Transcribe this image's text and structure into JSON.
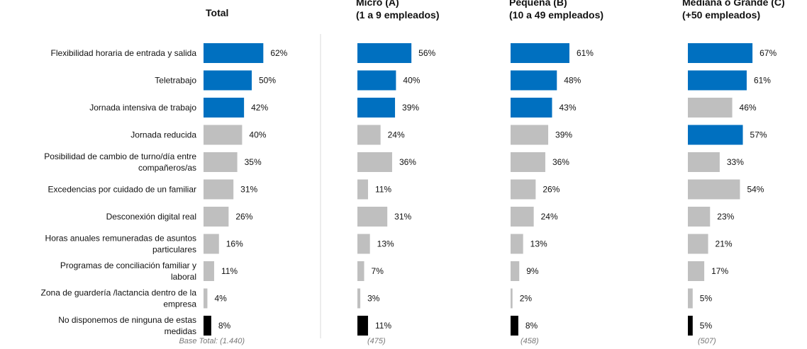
{
  "chart_data": {
    "type": "bar",
    "orientation": "horizontal",
    "unit": "%",
    "xlim": [
      0,
      100
    ],
    "grid": false,
    "legend": "none",
    "colors": {
      "highlight": "#0070C0",
      "default": "#BFBFBF",
      "none_option": "#000000"
    },
    "categories": [
      "Flexibilidad horaria de entrada y salida",
      "Teletrabajo",
      "Jornada intensiva de trabajo",
      "Jornada reducida",
      "Posibilidad de cambio de turno/día entre compañeros/as",
      "Excedencias por cuidado de un familiar",
      "Desconexión digital real",
      "Horas anuales remuneradas de asuntos particulares",
      "Programas de conciliación familiar y laboral",
      "Zona de guardería /lactancia dentro de la empresa",
      "No disponemos de ninguna de estas medidas"
    ],
    "category_lines": [
      [
        "Flexibilidad horaria de entrada y salida"
      ],
      [
        "Teletrabajo"
      ],
      [
        "Jornada intensiva de trabajo"
      ],
      [
        "Jornada reducida"
      ],
      [
        "Posibilidad de cambio de turno/día entre",
        "compañeros/as"
      ],
      [
        "Excedencias por cuidado de un familiar"
      ],
      [
        "Desconexión digital real"
      ],
      [
        "Horas anuales remuneradas de asuntos",
        "particulares"
      ],
      [
        "Programas de conciliación familiar y",
        "laboral"
      ],
      [
        "Zona de guardería /lactancia dentro de la",
        "empresa"
      ],
      [
        "No disponemos de ninguna de estas",
        "medidas"
      ]
    ],
    "series": [
      {
        "header": [
          "Total"
        ],
        "base": "Base Total: (1.440)",
        "values": [
          62,
          50,
          42,
          40,
          35,
          31,
          26,
          16,
          11,
          4,
          8
        ],
        "highlight": [
          "highlight",
          "highlight",
          "highlight",
          "default",
          "default",
          "default",
          "default",
          "default",
          "default",
          "default",
          "none_option"
        ]
      },
      {
        "header": [
          "Micro (A)",
          "(1 a 9 empleados)"
        ],
        "base": "(475)",
        "values": [
          56,
          40,
          39,
          24,
          36,
          11,
          31,
          13,
          7,
          3,
          11
        ],
        "highlight": [
          "highlight",
          "highlight",
          "highlight",
          "default",
          "default",
          "default",
          "default",
          "default",
          "default",
          "default",
          "none_option"
        ]
      },
      {
        "header": [
          "Pequeña (B)",
          "(10 a 49 empleados)"
        ],
        "base": "(458)",
        "values": [
          61,
          48,
          43,
          39,
          36,
          26,
          24,
          13,
          9,
          2,
          8
        ],
        "highlight": [
          "highlight",
          "highlight",
          "highlight",
          "default",
          "default",
          "default",
          "default",
          "default",
          "default",
          "default",
          "none_option"
        ]
      },
      {
        "header": [
          "Mediana o Grande (C)",
          "(+50 empleados)"
        ],
        "base": "(507)",
        "values": [
          67,
          61,
          46,
          57,
          33,
          54,
          23,
          21,
          17,
          5,
          5
        ],
        "highlight": [
          "highlight",
          "highlight",
          "default",
          "highlight",
          "default",
          "default",
          "default",
          "default",
          "default",
          "default",
          "none_option"
        ]
      }
    ]
  }
}
